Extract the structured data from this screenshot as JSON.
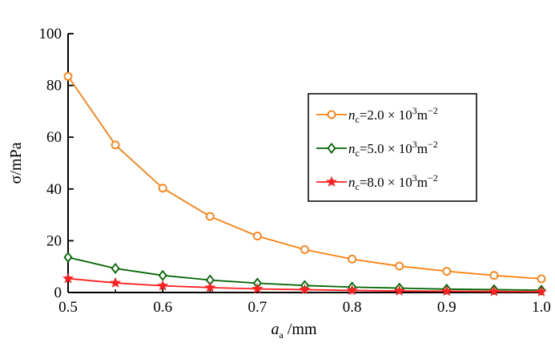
{
  "chart_data": {
    "type": "line",
    "xlabel": {
      "main": "a",
      "sub": "a",
      "unit": " /mm"
    },
    "ylabel": "σ/mPa",
    "xlim": [
      0.5,
      1.0
    ],
    "ylim": [
      0,
      100
    ],
    "x_ticks": [
      "0.5",
      "0.6",
      "0.7",
      "0.8",
      "0.9",
      "1.0"
    ],
    "y_ticks": [
      "0",
      "20",
      "40",
      "60",
      "80",
      "100"
    ],
    "grid": false,
    "legend_position": "right",
    "x": [
      0.5,
      0.55,
      0.6,
      0.65,
      0.7,
      0.75,
      0.8,
      0.85,
      0.9,
      0.95,
      1.0
    ],
    "series": [
      {
        "var": "n",
        "sub": "c",
        "value": "=2.0",
        "times": " × 10",
        "exp": "3",
        "unit": "m",
        "unit_exp": "−2",
        "color": "#ff7f0e",
        "marker": "circle",
        "values": [
          83.5,
          57.0,
          40.3,
          29.4,
          21.8,
          16.6,
          12.9,
          10.2,
          8.2,
          6.6,
          5.3
        ]
      },
      {
        "var": "n",
        "sub": "c",
        "value": "=5.0",
        "times": " × 10",
        "exp": "3",
        "unit": "m",
        "unit_exp": "−2",
        "color": "#006400",
        "marker": "diamond",
        "values": [
          13.6,
          9.3,
          6.6,
          4.8,
          3.6,
          2.7,
          2.1,
          1.7,
          1.3,
          1.1,
          0.9
        ]
      },
      {
        "var": "n",
        "sub": "c",
        "value": "=8.0",
        "times": " × 10",
        "exp": "3",
        "unit": "m",
        "unit_exp": "−2",
        "color": "#ff2020",
        "marker": "star",
        "values": [
          5.4,
          3.7,
          2.6,
          1.9,
          1.4,
          1.1,
          0.8,
          0.6,
          0.5,
          0.4,
          0.3
        ]
      }
    ]
  }
}
